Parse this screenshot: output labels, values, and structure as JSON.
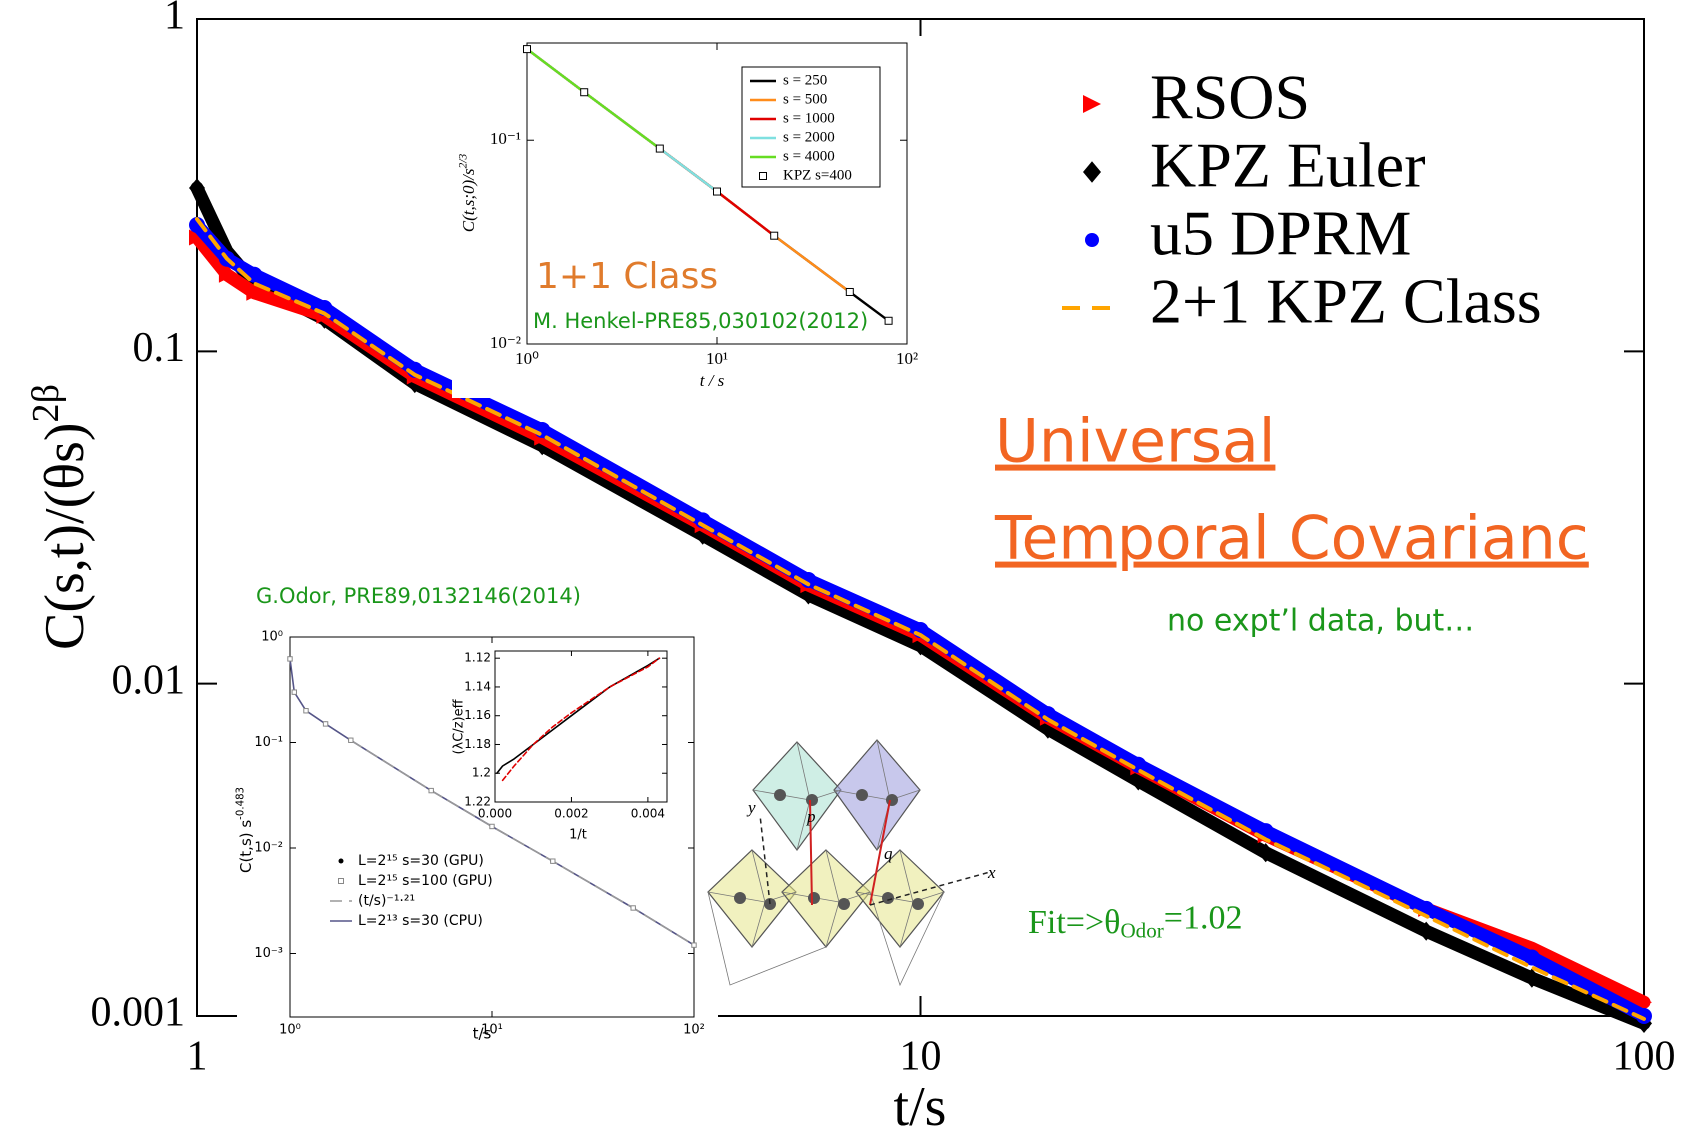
{
  "chart_data": [
    {
      "type": "scatter",
      "xscale": "log",
      "yscale": "log",
      "x": [
        1,
        1.1,
        1.2,
        1.5,
        2,
        3,
        5,
        7,
        10,
        15,
        20,
        30,
        50,
        70,
        100
      ],
      "xlim": [
        1,
        100
      ],
      "ylim": [
        0.001,
        1
      ],
      "xticks": [
        1,
        10,
        100
      ],
      "yticks": [
        0.001,
        0.01,
        0.1,
        1
      ],
      "xlabel": "t/s",
      "ylabel": {
        "text": "C(s,t)/(θs)",
        "sup": "2β"
      },
      "legend": "upper right",
      "series": [
        {
          "name": "RSOS",
          "color": "#ff0000",
          "marker": "triangle",
          "line": "solid",
          "values": [
            0.22,
            0.17,
            0.15,
            0.128,
            0.084,
            0.055,
            0.03,
            0.0198,
            0.014,
            0.0079,
            0.0056,
            0.0035,
            0.0021,
            0.0016,
            0.0011
          ]
        },
        {
          "name": "KPZ Euler",
          "color": "#000000",
          "marker": "diamond",
          "line": "solid",
          "values": [
            0.31,
            0.2,
            0.16,
            0.125,
            0.08,
            0.052,
            0.028,
            0.0185,
            0.013,
            0.0073,
            0.0051,
            0.0031,
            0.0018,
            0.0013,
            0.00095
          ]
        },
        {
          "name": "u5 DPRM",
          "color": "#0000ff",
          "marker": "circle",
          "line": "solid",
          "values": [
            0.24,
            0.19,
            0.17,
            0.135,
            0.088,
            0.058,
            0.031,
            0.0205,
            0.0145,
            0.0081,
            0.0057,
            0.0036,
            0.0021,
            0.0015,
            0.001
          ]
        },
        {
          "name": "2+1 KPZ Class",
          "color": "#ffa500",
          "marker": "none",
          "line": "dashed",
          "values": [
            0.25,
            0.19,
            0.16,
            0.13,
            0.085,
            0.056,
            0.03,
            0.0199,
            0.014,
            0.0078,
            0.0055,
            0.0034,
            0.002,
            0.0014,
            0.00098
          ]
        }
      ],
      "annotations": [
        "Universal",
        "Temporal Covarianc",
        "no expt’l data, but…"
      ],
      "fit_note": {
        "text": "Fit=>θ",
        "sub": "Odor",
        "tail": "=1.02"
      },
      "diagram_labels": [
        "p",
        "q",
        "x",
        "y"
      ]
    },
    {
      "type": "line",
      "xscale": "log",
      "yscale": "log",
      "x": [
        1,
        2,
        5,
        10,
        20,
        50,
        80
      ],
      "xlim": [
        1,
        100
      ],
      "ylim": [
        0.01,
        0.3
      ],
      "xticks": [
        {
          "value": 1,
          "label": "10⁰"
        },
        {
          "value": 10,
          "label": "10¹"
        },
        {
          "value": 100,
          "label": "10²"
        }
      ],
      "yticks": [
        {
          "value": 0.01,
          "label": "10⁻²"
        },
        {
          "value": 0.1,
          "label": "10⁻¹"
        }
      ],
      "xlabel": "t / s",
      "ylabel": {
        "text": "C(t,s;0)/s",
        "sup": "2/3"
      },
      "legend": "upper right",
      "series": [
        {
          "name": "s = 250",
          "color": "#000000",
          "marker": "none",
          "line": "solid",
          "values": [
            0.28,
            0.172,
            0.091,
            0.056,
            0.034,
            0.018,
            0.013
          ]
        },
        {
          "name": "s = 500",
          "color": "#ff8c1a",
          "marker": "none",
          "line": "solid",
          "values": [
            0.28,
            0.172,
            0.091,
            0.056,
            0.034,
            0.018,
            null
          ]
        },
        {
          "name": "s = 1000",
          "color": "#e00000",
          "marker": "none",
          "line": "solid",
          "values": [
            0.28,
            0.172,
            0.091,
            0.056,
            0.034,
            null,
            null
          ]
        },
        {
          "name": "s = 2000",
          "color": "#7fe0e0",
          "marker": "none",
          "line": "solid",
          "values": [
            0.28,
            0.172,
            0.091,
            0.056,
            null,
            null,
            null
          ]
        },
        {
          "name": "s = 4000",
          "color": "#66dd22",
          "marker": "none",
          "line": "solid",
          "values": [
            0.28,
            0.172,
            0.091,
            null,
            null,
            null,
            null
          ]
        },
        {
          "name": "KPZ s=400",
          "color": "#000000",
          "marker": "square",
          "line": "none",
          "values": [
            0.28,
            0.172,
            0.091,
            0.056,
            0.034,
            0.018,
            0.013
          ]
        }
      ],
      "annotations": [
        "1+1 Class",
        "M. Henkel-PRE85,030102(2012)"
      ]
    },
    {
      "type": "line",
      "xscale": "log",
      "yscale": "log",
      "title": "G.Odor, PRE89,0132146(2014)",
      "x": [
        1,
        1.05,
        1.2,
        1.5,
        2,
        5,
        10,
        20,
        50,
        100
      ],
      "xlim": [
        1,
        100
      ],
      "ylim": [
        0.00025,
        1
      ],
      "xticks": [
        {
          "value": 1,
          "label": "10⁰"
        },
        {
          "value": 10,
          "label": "10¹"
        },
        {
          "value": 100,
          "label": "10²"
        }
      ],
      "yticks": [
        {
          "value": 0.001,
          "label": "10⁻³"
        },
        {
          "value": 0.01,
          "label": "10⁻²"
        },
        {
          "value": 0.1,
          "label": "10⁻¹"
        },
        {
          "value": 1,
          "label": "10⁰"
        }
      ],
      "xlabel": "t/s",
      "ylabel": {
        "text": "C(t,s) s",
        "sup": "-0.483"
      },
      "legend": "lower left",
      "series": [
        {
          "name": "L=2¹⁵ s=30 (GPU)",
          "color": "#000000",
          "marker": "dot",
          "line": "none",
          "values": [
            0.62,
            0.3,
            0.2,
            0.15,
            0.105,
            0.035,
            0.016,
            0.0075,
            0.0027,
            0.0012
          ]
        },
        {
          "name": "L=2¹⁵ s=100 (GPU)",
          "color": "#888888",
          "marker": "square",
          "line": "none",
          "values": [
            0.62,
            0.3,
            0.2,
            0.15,
            0.105,
            0.035,
            0.016,
            0.0075,
            0.0027,
            0.0012
          ]
        },
        {
          "name": "(t/s)⁻¹·²¹",
          "color": "#999999",
          "marker": "none",
          "line": "dashed",
          "values": [
            null,
            null,
            null,
            null,
            0.105,
            0.035,
            0.016,
            0.0075,
            0.0027,
            0.0012
          ]
        },
        {
          "name": "L=2¹³ s=30 (CPU)",
          "color": "#555588",
          "marker": "none",
          "line": "solid",
          "values": [
            0.62,
            0.3,
            0.2,
            0.15,
            0.105,
            0.035,
            0.016,
            0.0075,
            0.0027,
            0.0012
          ]
        }
      ]
    },
    {
      "type": "line",
      "xscale": "linear",
      "yscale": "linear",
      "x": [
        5e-05,
        0.0002,
        0.0005,
        0.001,
        0.0015,
        0.002,
        0.003,
        0.004,
        0.0043
      ],
      "xlim": [
        0,
        0.0045
      ],
      "ylim": [
        1.22,
        1.115
      ],
      "xticks": [
        {
          "value": 0,
          "label": "0.000"
        },
        0.002,
        0.004
      ],
      "yticks": [
        1.12,
        1.14,
        1.16,
        1.18,
        1.2,
        1.22
      ],
      "xlabel": "1/t",
      "ylabel": "(λC/z)eff",
      "series": [
        {
          "color": "#000000",
          "marker": "none",
          "line": "solid",
          "values": [
            1.2,
            1.195,
            1.19,
            1.18,
            1.17,
            1.16,
            1.14,
            1.125,
            1.12
          ]
        },
        {
          "color": "#e00000",
          "marker": "none",
          "line": "dashed",
          "values": [
            null,
            1.205,
            1.195,
            1.18,
            1.168,
            1.158,
            1.14,
            1.126,
            1.12
          ]
        }
      ]
    }
  ]
}
